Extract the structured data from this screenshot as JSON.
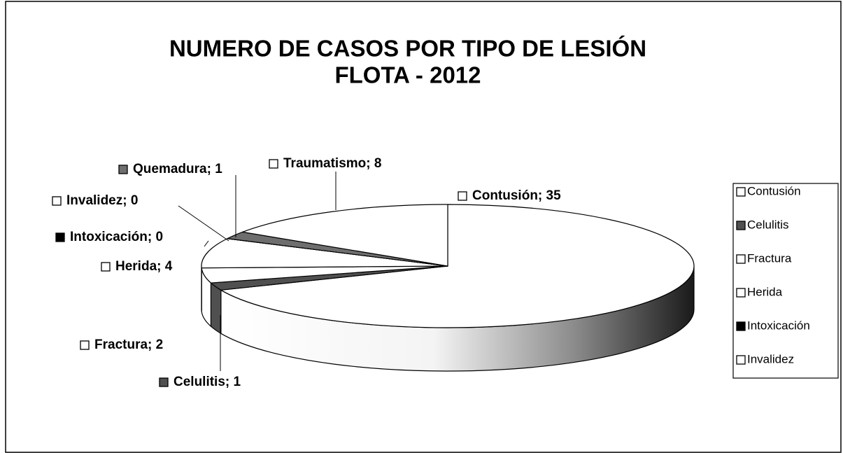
{
  "chart_data": {
    "type": "pie3d",
    "title": "NUMERO DE CASOS POR TIPO DE LESIÓN",
    "subtitle": "FLOTA - 2012",
    "categories": [
      "Contusión",
      "Celulitis",
      "Fractura",
      "Herida",
      "Intoxicación",
      "Invalidez",
      "Quemadura",
      "Traumatismo"
    ],
    "values": [
      35,
      1,
      2,
      4,
      0,
      0,
      1,
      8
    ],
    "value_labels": [
      "Contusión; 35",
      "Celulitis; 1",
      "Fractura; 2",
      "Herida; 4",
      "Intoxicación; 0",
      "Invalidez; 0",
      "Quemadura; 1",
      "Traumatismo; 8"
    ],
    "colors": [
      "#ffffff",
      "#505050",
      "#ffffff",
      "#ffffff",
      "#000000",
      "#ffffff",
      "#6e6e6e",
      "#ffffff"
    ],
    "legend": "right"
  }
}
